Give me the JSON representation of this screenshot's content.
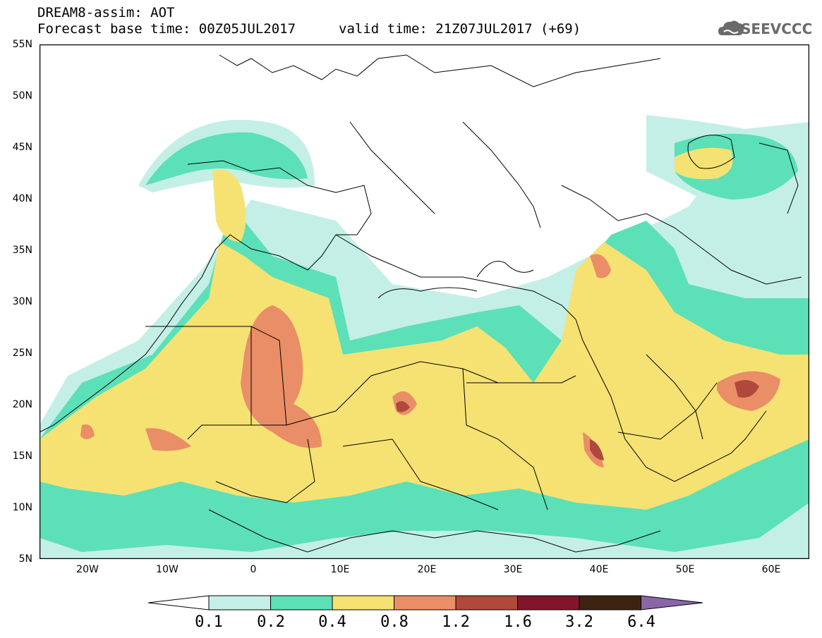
{
  "header": {
    "title_line1": "DREAM8-assim: AOT",
    "title_line2": "Forecast base time: 00Z05JUL2017",
    "valid_time": "valid time: 21Z07JUL2017 (+69)",
    "logo_text": "SEEVCCC"
  },
  "map": {
    "lat_labels": [
      "55N",
      "50N",
      "45N",
      "40N",
      "35N",
      "30N",
      "25N",
      "20N",
      "15N",
      "10N",
      "5N"
    ],
    "lon_labels": [
      "20W",
      "10W",
      "0",
      "10E",
      "20E",
      "30E",
      "40E",
      "50E",
      "60E"
    ]
  },
  "legend": {
    "levels": [
      "0.1",
      "0.2",
      "0.4",
      "0.8",
      "1.2",
      "1.6",
      "3.2",
      "6.4"
    ],
    "colors": [
      "#ffffff",
      "#c4efe6",
      "#5ce0b8",
      "#f5e273",
      "#e98e66",
      "#b0483b",
      "#82152a",
      "#3d2412",
      "#8a66a8"
    ]
  }
}
